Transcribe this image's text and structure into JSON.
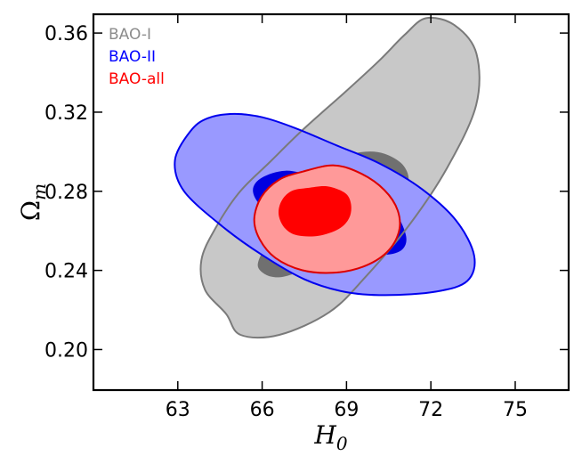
{
  "chart_data": {
    "type": "contour",
    "xlabel": "H₀",
    "ylabel": "Ωm",
    "xlim": [
      60.0,
      76.9
    ],
    "ylim": [
      0.1795,
      0.3695
    ],
    "x_ticks": [
      63,
      66,
      69,
      72,
      75
    ],
    "x_tick_labels": [
      "63",
      "66",
      "69",
      "72",
      "75"
    ],
    "y_ticks": [
      0.2,
      0.24,
      0.28,
      0.32,
      0.36
    ],
    "y_tick_labels": [
      "0.20",
      "0.24",
      "0.28",
      "0.32",
      "0.36"
    ],
    "grid": false,
    "legend": {
      "placement": "top-left",
      "entries": [
        {
          "name": "BAO-I",
          "color": "#8c8c8c"
        },
        {
          "name": "BAO-II",
          "color": "#0000ff"
        },
        {
          "name": "BAO-all",
          "color": "#ff0000"
        }
      ]
    },
    "series": [
      {
        "name": "BAO-I",
        "edge_color": "#7a7a7a",
        "outer_fill": "#c8c8c8",
        "inner_fill": "#707070",
        "outer_contour": [
          [
            64.72,
            0.218
          ],
          [
            63.97,
            0.2302
          ],
          [
            63.84,
            0.2452
          ],
          [
            64.31,
            0.2606
          ],
          [
            65.18,
            0.2793
          ],
          [
            66.26,
            0.2946
          ],
          [
            67.49,
            0.3117
          ],
          [
            68.96,
            0.3303
          ],
          [
            70.16,
            0.346
          ],
          [
            71.06,
            0.359
          ],
          [
            71.83,
            0.3675
          ],
          [
            72.85,
            0.3639
          ],
          [
            73.62,
            0.3496
          ],
          [
            73.61,
            0.3235
          ],
          [
            72.58,
            0.2919
          ],
          [
            71.26,
            0.2635
          ],
          [
            69.67,
            0.2366
          ],
          [
            68.38,
            0.2188
          ],
          [
            66.61,
            0.2074
          ],
          [
            65.23,
            0.2074
          ],
          [
            64.72,
            0.218
          ]
        ],
        "inner_contour": [
          [
            66.11,
            0.2503
          ],
          [
            66.59,
            0.2464
          ],
          [
            67.19,
            0.2444
          ],
          [
            67.86,
            0.2531
          ],
          [
            68.21,
            0.263
          ],
          [
            68.45,
            0.2707
          ],
          [
            68.56,
            0.2805
          ],
          [
            68.55,
            0.29
          ],
          [
            69.06,
            0.2976
          ],
          [
            69.67,
            0.3
          ],
          [
            70.35,
            0.299
          ],
          [
            70.99,
            0.2936
          ],
          [
            71.21,
            0.2855
          ],
          [
            70.9,
            0.2777
          ],
          [
            70.21,
            0.2705
          ],
          [
            69.67,
            0.2623
          ],
          [
            69.06,
            0.2565
          ],
          [
            68.25,
            0.2469
          ],
          [
            67.05,
            0.238
          ],
          [
            66.31,
            0.2369
          ],
          [
            65.85,
            0.242
          ],
          [
            66.11,
            0.2503
          ]
        ]
      },
      {
        "name": "BAO-II",
        "edge_color": "#0000ee",
        "outer_fill": "#9999ff",
        "inner_fill": "#0000e0",
        "outer_contour": [
          [
            63.45,
            0.3104
          ],
          [
            64.06,
            0.3169
          ],
          [
            65.0,
            0.3191
          ],
          [
            66.01,
            0.3174
          ],
          [
            67.13,
            0.3122
          ],
          [
            68.65,
            0.3032
          ],
          [
            70.17,
            0.2941
          ],
          [
            71.68,
            0.2811
          ],
          [
            72.9,
            0.2652
          ],
          [
            73.54,
            0.2475
          ],
          [
            73.3,
            0.2347
          ],
          [
            72.19,
            0.2293
          ],
          [
            70.37,
            0.2275
          ],
          [
            68.92,
            0.2292
          ],
          [
            67.49,
            0.2356
          ],
          [
            66.02,
            0.2476
          ],
          [
            64.58,
            0.2623
          ],
          [
            63.22,
            0.2801
          ],
          [
            62.9,
            0.2957
          ],
          [
            63.45,
            0.3104
          ]
        ],
        "inner_contour": [
          [
            65.99,
            0.2869
          ],
          [
            66.83,
            0.2904
          ],
          [
            67.79,
            0.2879
          ],
          [
            68.9,
            0.2844
          ],
          [
            70.03,
            0.2782
          ],
          [
            70.73,
            0.2695
          ],
          [
            71.12,
            0.2571
          ],
          [
            70.94,
            0.2501
          ],
          [
            70.27,
            0.2479
          ],
          [
            69.32,
            0.25
          ],
          [
            68.0,
            0.2542
          ],
          [
            66.87,
            0.2622
          ],
          [
            65.98,
            0.2722
          ],
          [
            65.67,
            0.2806
          ],
          [
            65.99,
            0.2869
          ]
        ]
      },
      {
        "name": "BAO-all",
        "edge_color": "#dd0000",
        "outer_fill": "#ff9999",
        "inner_fill": "#ff0000",
        "outer_contour": [
          [
            67.43,
            0.2899
          ],
          [
            68.56,
            0.2931
          ],
          [
            69.54,
            0.2888
          ],
          [
            70.35,
            0.2806
          ],
          [
            70.82,
            0.2703
          ],
          [
            70.86,
            0.2595
          ],
          [
            70.43,
            0.2491
          ],
          [
            69.58,
            0.2418
          ],
          [
            68.52,
            0.2388
          ],
          [
            67.42,
            0.2401
          ],
          [
            66.47,
            0.2463
          ],
          [
            65.91,
            0.2558
          ],
          [
            65.72,
            0.266
          ],
          [
            65.97,
            0.2771
          ],
          [
            66.59,
            0.2857
          ],
          [
            67.43,
            0.2899
          ]
        ],
        "inner_contour": [
          [
            67.63,
            0.2817
          ],
          [
            68.32,
            0.2825
          ],
          [
            68.95,
            0.2791
          ],
          [
            69.16,
            0.2736
          ],
          [
            69.1,
            0.2666
          ],
          [
            68.73,
            0.261
          ],
          [
            68.01,
            0.2575
          ],
          [
            67.25,
            0.2577
          ],
          [
            66.81,
            0.2613
          ],
          [
            66.59,
            0.268
          ],
          [
            66.68,
            0.2749
          ],
          [
            67.04,
            0.2801
          ],
          [
            67.63,
            0.2817
          ]
        ]
      }
    ]
  }
}
